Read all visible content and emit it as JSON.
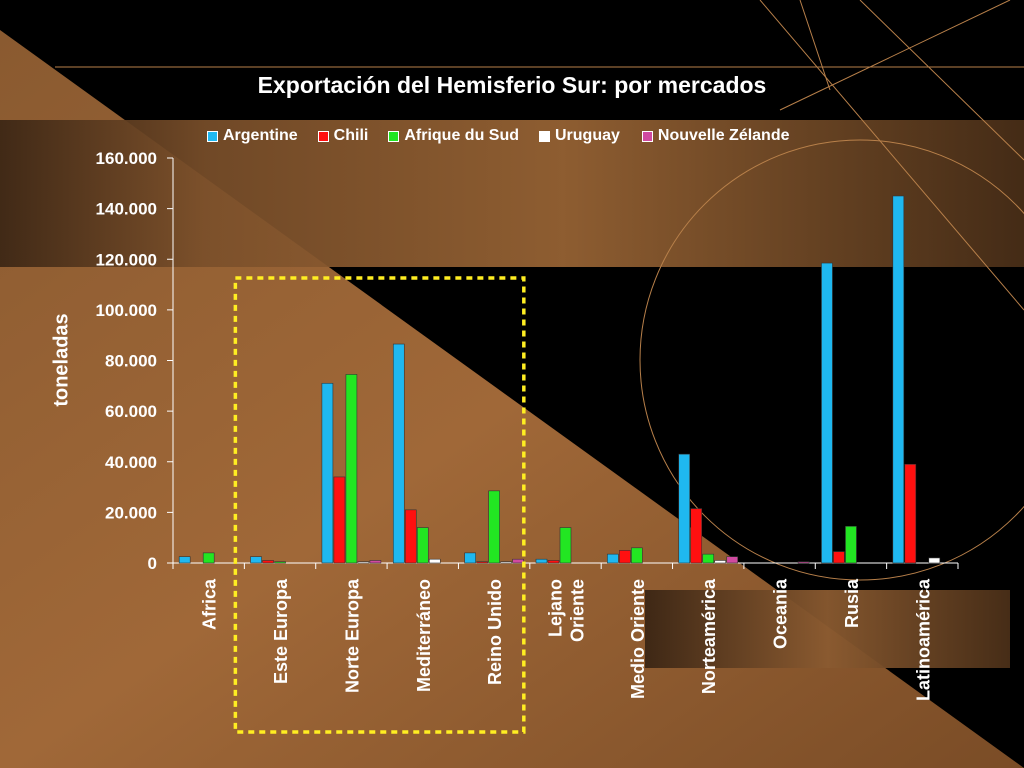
{
  "chart_data": {
    "type": "bar",
    "title": "Exportación del Hemisferio Sur: por mercados",
    "xlabel": "",
    "ylabel": "toneladas",
    "ylim": [
      0,
      160000
    ],
    "yticks": [
      "0",
      "20.000",
      "40.000",
      "60.000",
      "80.000",
      "100.000",
      "120.000",
      "140.000",
      "160.000"
    ],
    "categories": [
      "Africa",
      "Este Europa",
      "Norte Europa",
      "Mediterráneo",
      "Reino Unido",
      "Lejano Oriente",
      "Medio Oriente",
      "Norteamérica",
      "Oceania",
      "Rusia",
      "Latinoamérica"
    ],
    "series": [
      {
        "name": "Argentine",
        "color": "#1fb8f0",
        "values": [
          2500,
          2500,
          71000,
          86500,
          4000,
          1500,
          3500,
          43000,
          0,
          118500,
          145000
        ]
      },
      {
        "name": "Chili",
        "color": "#ff1010",
        "values": [
          0,
          1000,
          34000,
          21000,
          500,
          1000,
          5000,
          21500,
          0,
          4500,
          39000
        ]
      },
      {
        "name": "Afrique du Sud",
        "color": "#22e622",
        "values": [
          4000,
          500,
          74500,
          14000,
          28500,
          14000,
          6000,
          3500,
          0,
          14500,
          0
        ]
      },
      {
        "name": "Uruguay",
        "color": "#ffffff",
        "values": [
          0,
          0,
          500,
          1500,
          500,
          0,
          0,
          1000,
          0,
          0,
          2000
        ]
      },
      {
        "name": "Nouvelle Zélande",
        "color": "#d04aa0",
        "values": [
          0,
          0,
          1000,
          0,
          1500,
          0,
          0,
          2500,
          500,
          0,
          0
        ]
      }
    ],
    "legend_position": "top",
    "highlight": {
      "categories": [
        "Este Europa",
        "Norte Europa",
        "Mediterráneo",
        "Reino Unido"
      ],
      "color": "#ffee22"
    }
  }
}
